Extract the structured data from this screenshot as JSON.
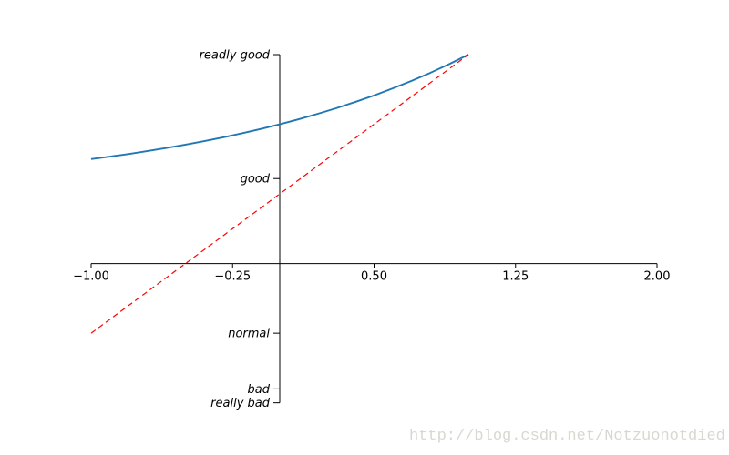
{
  "figure": {
    "background": "#ffffff"
  },
  "watermark": {
    "text": "http://blog.csdn.net/Notzuonotdied",
    "color": "#d8d8d0"
  },
  "chart_data": {
    "type": "line",
    "title": "",
    "xlabel": "",
    "ylabel": "",
    "grid": false,
    "legend": null,
    "xlim": [
      -1,
      2
    ],
    "ylim": [
      -2,
      3
    ],
    "axis_color": "#000000",
    "x_ticks": [
      {
        "value": -1.0,
        "label": "−1.00"
      },
      {
        "value": -0.25,
        "label": "−0.25"
      },
      {
        "value": 0.5,
        "label": "0.50"
      },
      {
        "value": 1.25,
        "label": "1.25"
      },
      {
        "value": 2.0,
        "label": "2.00"
      }
    ],
    "y_ticks": [
      {
        "value": 3.0,
        "label": "readly good"
      },
      {
        "value": 1.22,
        "label": "good"
      },
      {
        "value": -1.0,
        "label": "normal"
      },
      {
        "value": -1.8,
        "label": "bad"
      },
      {
        "value": -2.0,
        "label": "really bad"
      }
    ],
    "series": [
      {
        "name": "blue_curve",
        "color": "#1f77b4",
        "style": "solid",
        "width": 1.9,
        "x": [
          -1.0,
          -0.9,
          -0.8,
          -0.7,
          -0.6,
          -0.5,
          -0.4,
          -0.3,
          -0.2,
          -0.1,
          0.0,
          0.1,
          0.2,
          0.3,
          0.4,
          0.5,
          0.6,
          0.7,
          0.8,
          0.9,
          1.0
        ],
        "y": [
          1.5,
          1.536,
          1.574,
          1.616,
          1.66,
          1.707,
          1.758,
          1.812,
          1.871,
          1.933,
          2.0,
          2.072,
          2.149,
          2.231,
          2.32,
          2.414,
          2.516,
          2.625,
          2.741,
          2.866,
          3.0
        ]
      },
      {
        "name": "red_dashed_line",
        "color": "#ff0000",
        "style": "dashed",
        "width": 1.2,
        "x": [
          -1.0,
          1.0
        ],
        "y": [
          -1.0,
          3.0
        ]
      }
    ]
  }
}
